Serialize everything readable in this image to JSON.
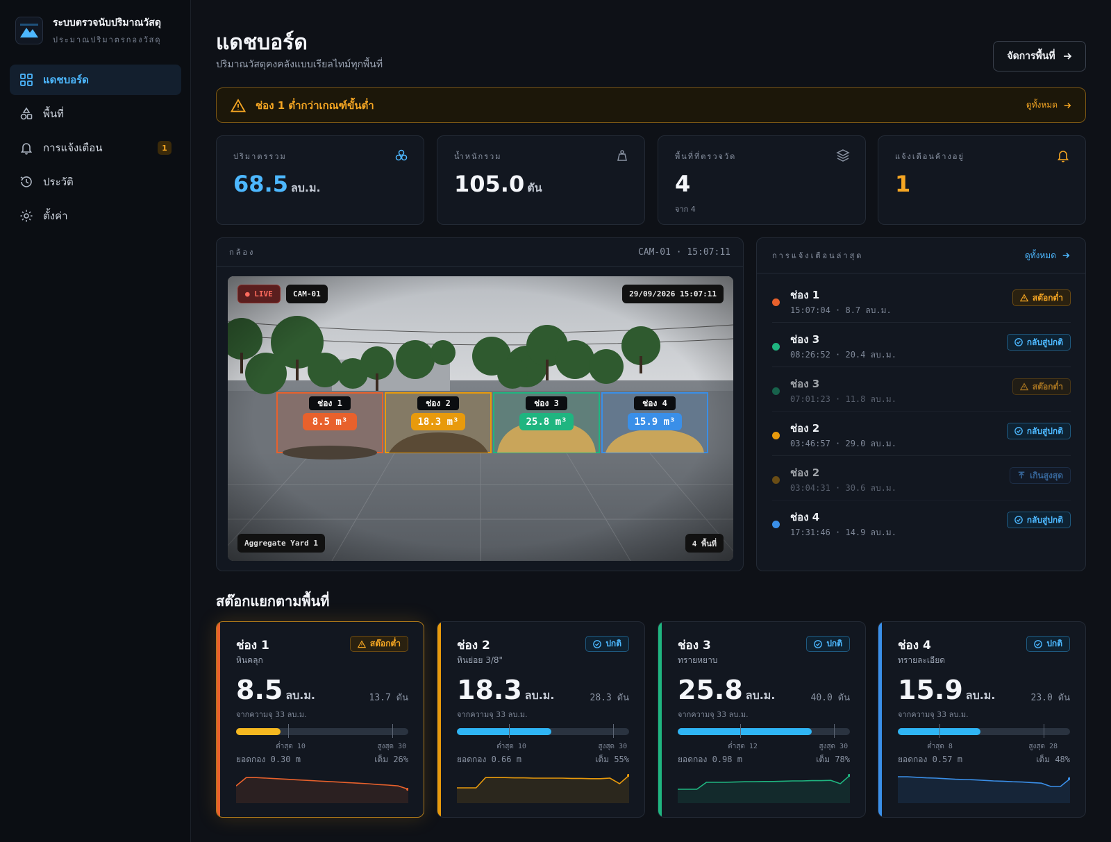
{
  "brand": {
    "title": "ระบบตรวจนับปริมาณวัสดุ",
    "subtitle": "ประมาณปริมาตรกองวัสดุ"
  },
  "nav": [
    {
      "label": "แดชบอร์ด",
      "icon": "grid-icon",
      "active": true
    },
    {
      "label": "พื้นที่",
      "icon": "shapes-icon"
    },
    {
      "label": "การแจ้งเตือน",
      "icon": "bell-icon",
      "badge": "1"
    },
    {
      "label": "ประวัติ",
      "icon": "history-icon"
    },
    {
      "label": "ตั้งค่า",
      "icon": "gear-icon"
    }
  ],
  "header": {
    "title": "แดชบอร์ด",
    "subtitle": "ปริมาณวัสดุคงคลังแบบเรียลไทม์ทุกพื้นที่",
    "manage_button": "จัดการพื้นที่"
  },
  "banner": {
    "text": "ช่อง 1 ต่ำกว่าเกณฑ์ขั้นต่ำ",
    "link": "ดูทั้งหมด"
  },
  "stats": [
    {
      "label": "ปริมาตรรวม",
      "value": "68.5",
      "unit": "ลบ.ม.",
      "icon": "cubes-icon",
      "accent": "#4db8ff"
    },
    {
      "label": "น้ำหนักรวม",
      "value": "105.0",
      "unit": "ตัน",
      "icon": "weight-icon"
    },
    {
      "label": "พื้นที่ที่ตรวจวัด",
      "value": "4",
      "unit": "",
      "note": "จาก 4",
      "icon": "layers-icon"
    },
    {
      "label": "แจ้งเตือนค้างอยู่",
      "value": "1",
      "unit": "",
      "icon": "bell-icon",
      "accent": "#f5a623"
    }
  ],
  "camera": {
    "title": "กล้อง",
    "id_time": "CAM-01 · 15:07:11",
    "live": "● LIVE",
    "cam_id": "CAM-01",
    "timestamp": "29/09/2026 15:07:11",
    "yard": "Aggregate Yard 1",
    "zones": "4 พื้นที่",
    "bays": [
      {
        "name": "ช่อง 1",
        "value": "8.5 m³",
        "color": "#e8612c"
      },
      {
        "name": "ช่อง 2",
        "value": "18.3 m³",
        "color": "#e89a0c"
      },
      {
        "name": "ช่อง 3",
        "value": "25.8 m³",
        "color": "#1fb580"
      },
      {
        "name": "ช่อง 4",
        "value": "15.9 m³",
        "color": "#3a8fe8"
      }
    ]
  },
  "alerts": {
    "title": "การแจ้งเตือนล่าสุด",
    "link": "ดูทั้งหมด",
    "items": [
      {
        "name": "ช่อง 1",
        "meta": "15:07:04 · 8.7 ลบ.ม.",
        "badge": "สต๊อกต่ำ",
        "kind": "low",
        "dot": "#e8612c"
      },
      {
        "name": "ช่อง 3",
        "meta": "08:26:52 · 20.4 ลบ.ม.",
        "badge": "กลับสู่ปกติ",
        "kind": "ok",
        "dot": "#1fb580"
      },
      {
        "name": "ช่อง 3",
        "meta": "07:01:23 · 11.8 ลบ.ม.",
        "badge": "สต๊อกต่ำ",
        "kind": "low",
        "dot": "#1a8a62",
        "dim": true
      },
      {
        "name": "ช่อง 2",
        "meta": "03:46:57 · 29.0 ลบ.ม.",
        "badge": "กลับสู่ปกติ",
        "kind": "ok",
        "dot": "#e89a0c"
      },
      {
        "name": "ช่อง 2",
        "meta": "03:04:31 · 30.6 ลบ.ม.",
        "badge": "เกินสูงสุด",
        "kind": "up",
        "dot": "#9a6a10",
        "dim": true
      },
      {
        "name": "ช่อง 4",
        "meta": "17:31:46 · 14.9 ลบ.ม.",
        "badge": "กลับสู่ปกติ",
        "kind": "ok",
        "dot": "#3a8fe8"
      }
    ]
  },
  "section": {
    "title": "สต๊อกแยกตามพื้นที่"
  },
  "bays": [
    {
      "name": "ช่อง 1",
      "material": "หินคลุก",
      "badge": "สต๊อกต่ำ",
      "kind": "low",
      "value": "8.5",
      "unit": "ลบ.ม.",
      "ton": "13.7 ตัน",
      "capacity": "จากความจุ 33 ลบ.ม.",
      "fill": 0.26,
      "min": 10,
      "max": 30,
      "min_label": "ต่ำสุด 10",
      "max_label": "สูงสุด 30",
      "peak": "ยอดกอง 0.30 m",
      "pct": "เต็ม 26%",
      "color": "#e8612c",
      "bar": "#f5b820",
      "spark": [
        0.62,
        0.92,
        0.92,
        0.9,
        0.88,
        0.86,
        0.84,
        0.82,
        0.8,
        0.78,
        0.76,
        0.74,
        0.72,
        0.7,
        0.67,
        0.65,
        0.62,
        0.5
      ]
    },
    {
      "name": "ช่อง 2",
      "material": "หินย่อย 3/8\"",
      "badge": "ปกติ",
      "kind": "ok",
      "value": "18.3",
      "unit": "ลบ.ม.",
      "ton": "28.3 ตัน",
      "capacity": "จากความจุ 33 ลบ.ม.",
      "fill": 0.55,
      "min": 10,
      "max": 30,
      "min_label": "ต่ำสุด 10",
      "max_label": "สูงสุด 30",
      "peak": "ยอดกอง 0.66 m",
      "pct": "เต็ม 55%",
      "color": "#e89a0c",
      "bar": "#2fb5f5",
      "spark": [
        0.55,
        0.55,
        0.55,
        0.92,
        0.92,
        0.92,
        0.91,
        0.91,
        0.9,
        0.9,
        0.9,
        0.9,
        0.89,
        0.89,
        0.88,
        0.88,
        0.9,
        0.7,
        1.0
      ]
    },
    {
      "name": "ช่อง 3",
      "material": "ทรายหยาบ",
      "badge": "ปกติ",
      "kind": "ok",
      "value": "25.8",
      "unit": "ลบ.ม.",
      "ton": "40.0 ตัน",
      "capacity": "จากความจุ 33 ลบ.ม.",
      "fill": 0.78,
      "min": 12,
      "max": 30,
      "min_label": "ต่ำสุด 12",
      "max_label": "สูงสุด 30",
      "peak": "ยอดกอง 0.98 m",
      "pct": "เต็ม 78%",
      "color": "#1fb580",
      "bar": "#2fb5f5",
      "spark": [
        0.5,
        0.5,
        0.5,
        0.75,
        0.75,
        0.75,
        0.76,
        0.77,
        0.77,
        0.78,
        0.78,
        0.79,
        0.8,
        0.8,
        0.81,
        0.81,
        0.82,
        0.7,
        1.0
      ]
    },
    {
      "name": "ช่อง 4",
      "material": "ทรายละเอียด",
      "badge": "ปกติ",
      "kind": "ok",
      "value": "15.9",
      "unit": "ลบ.ม.",
      "ton": "23.0 ตัน",
      "capacity": "จากความจุ 33 ลบ.ม.",
      "fill": 0.48,
      "min": 8,
      "max": 28,
      "min_label": "ต่ำสุด 8",
      "max_label": "สูงสุด 28",
      "peak": "ยอดกอง 0.57 m",
      "pct": "เต็ม 48%",
      "color": "#3a8fe8",
      "bar": "#2fb5f5",
      "spark": [
        0.95,
        0.95,
        0.93,
        0.91,
        0.9,
        0.88,
        0.86,
        0.85,
        0.84,
        0.82,
        0.8,
        0.79,
        0.77,
        0.76,
        0.74,
        0.72,
        0.6,
        0.6,
        0.88
      ]
    }
  ]
}
